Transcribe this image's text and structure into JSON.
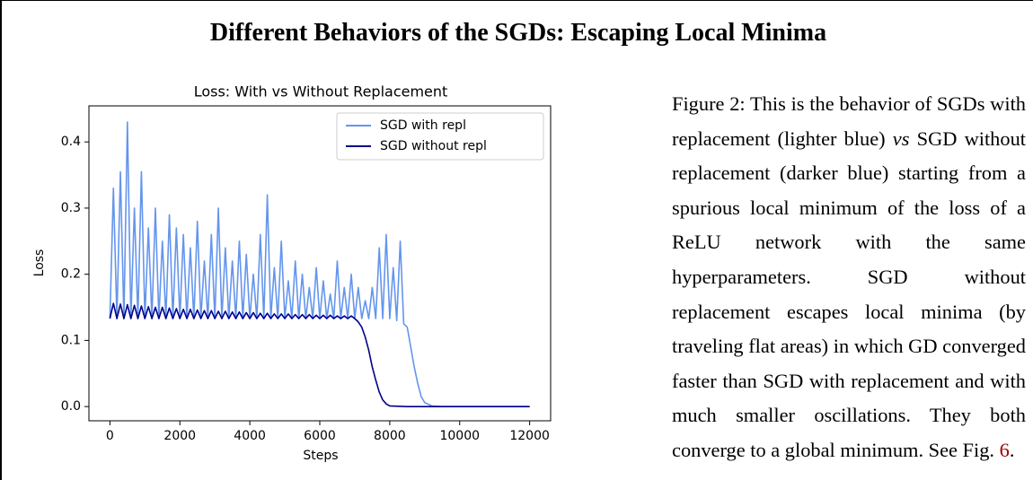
{
  "header": {
    "title": "Different Behaviors of the SGDs: Escaping Local Minima"
  },
  "chart_data": {
    "type": "line",
    "title": "Loss: With vs Without Replacement",
    "xlabel": "Steps",
    "ylabel": "Loss",
    "xlim": [
      -600,
      12600
    ],
    "ylim": [
      -0.0215,
      0.4545
    ],
    "xticks": [
      0,
      2000,
      4000,
      6000,
      8000,
      10000,
      12000
    ],
    "yticks": [
      {
        "value": 0,
        "label": "0.0"
      },
      0.1,
      0.2,
      0.3,
      0.4
    ],
    "grid": false,
    "legend": "upper right",
    "series": [
      {
        "name": "SGD with repl",
        "color": "#6495ed",
        "x": [
          0,
          100,
          200,
          300,
          400,
          500,
          600,
          700,
          800,
          900,
          1000,
          1100,
          1200,
          1300,
          1400,
          1500,
          1600,
          1700,
          1800,
          1900,
          2000,
          2100,
          2200,
          2300,
          2400,
          2500,
          2600,
          2700,
          2800,
          2900,
          3000,
          3100,
          3200,
          3300,
          3400,
          3500,
          3600,
          3700,
          3800,
          3900,
          4000,
          4100,
          4200,
          4300,
          4400,
          4500,
          4600,
          4700,
          4800,
          4900,
          5000,
          5100,
          5200,
          5300,
          5400,
          5500,
          5600,
          5700,
          5800,
          5900,
          6000,
          6100,
          6200,
          6300,
          6400,
          6500,
          6600,
          6700,
          6800,
          6900,
          7000,
          7100,
          7200,
          7300,
          7400,
          7500,
          7600,
          7700,
          7800,
          7900,
          8000,
          8100,
          8200,
          8300,
          8400,
          8500,
          8600,
          8700,
          8800,
          8900,
          9000,
          9200,
          9500,
          10000,
          11000,
          12000
        ],
        "values": [
          0.133,
          0.33,
          0.133,
          0.355,
          0.133,
          0.43,
          0.133,
          0.3,
          0.133,
          0.355,
          0.133,
          0.27,
          0.133,
          0.3,
          0.133,
          0.25,
          0.133,
          0.29,
          0.133,
          0.27,
          0.133,
          0.26,
          0.133,
          0.24,
          0.133,
          0.28,
          0.133,
          0.22,
          0.133,
          0.26,
          0.133,
          0.3,
          0.133,
          0.24,
          0.133,
          0.22,
          0.133,
          0.25,
          0.133,
          0.23,
          0.133,
          0.2,
          0.133,
          0.26,
          0.133,
          0.32,
          0.133,
          0.21,
          0.133,
          0.25,
          0.133,
          0.19,
          0.133,
          0.22,
          0.133,
          0.2,
          0.133,
          0.18,
          0.133,
          0.21,
          0.133,
          0.19,
          0.133,
          0.17,
          0.133,
          0.22,
          0.133,
          0.18,
          0.133,
          0.2,
          0.133,
          0.18,
          0.133,
          0.16,
          0.133,
          0.18,
          0.133,
          0.24,
          0.133,
          0.26,
          0.133,
          0.21,
          0.13,
          0.25,
          0.125,
          0.12,
          0.09,
          0.06,
          0.035,
          0.015,
          0.006,
          0.001,
          0,
          0,
          0,
          0
        ]
      },
      {
        "name": "SGD without repl",
        "color": "#00008b",
        "x": [
          0,
          100,
          200,
          300,
          400,
          500,
          600,
          700,
          800,
          900,
          1000,
          1100,
          1200,
          1300,
          1400,
          1500,
          1600,
          1700,
          1800,
          1900,
          2000,
          2100,
          2200,
          2300,
          2400,
          2500,
          2600,
          2700,
          2800,
          2900,
          3000,
          3100,
          3200,
          3300,
          3400,
          3500,
          3600,
          3700,
          3800,
          3900,
          4000,
          4100,
          4200,
          4300,
          4400,
          4500,
          4600,
          4700,
          4800,
          4900,
          5000,
          5100,
          5200,
          5300,
          5400,
          5500,
          5600,
          5700,
          5800,
          5900,
          6000,
          6100,
          6200,
          6300,
          6400,
          6500,
          6600,
          6700,
          6800,
          6900,
          7000,
          7100,
          7200,
          7300,
          7400,
          7500,
          7600,
          7700,
          7800,
          7900,
          8000,
          8500,
          12000
        ],
        "values": [
          0.133,
          0.156,
          0.133,
          0.155,
          0.133,
          0.154,
          0.133,
          0.153,
          0.133,
          0.152,
          0.133,
          0.151,
          0.133,
          0.15,
          0.133,
          0.15,
          0.133,
          0.149,
          0.133,
          0.148,
          0.133,
          0.147,
          0.133,
          0.147,
          0.133,
          0.146,
          0.133,
          0.145,
          0.133,
          0.145,
          0.133,
          0.144,
          0.133,
          0.144,
          0.133,
          0.143,
          0.133,
          0.143,
          0.133,
          0.142,
          0.133,
          0.142,
          0.133,
          0.141,
          0.133,
          0.141,
          0.133,
          0.14,
          0.133,
          0.14,
          0.133,
          0.14,
          0.133,
          0.139,
          0.133,
          0.139,
          0.133,
          0.139,
          0.133,
          0.138,
          0.133,
          0.138,
          0.133,
          0.138,
          0.133,
          0.137,
          0.133,
          0.137,
          0.133,
          0.137,
          0.133,
          0.128,
          0.12,
          0.105,
          0.085,
          0.06,
          0.04,
          0.022,
          0.01,
          0.004,
          0.001,
          0,
          0
        ]
      }
    ]
  },
  "caption": {
    "lead": "Figure 2:  This is the behavior of SGDs with replacement (lighter blue) ",
    "emph": "vs",
    "body": " SGD without replacement (darker blue) starting from a spurious local minimum of the loss of a ReLU network with the same hyperparameters. SGD without replacement escapes local minima (by traveling flat areas) in which GD converged faster than SGD with replacement and with much smaller oscillations. They both converge to a global minimum. See Fig. ",
    "ref": "6",
    "end": "."
  }
}
